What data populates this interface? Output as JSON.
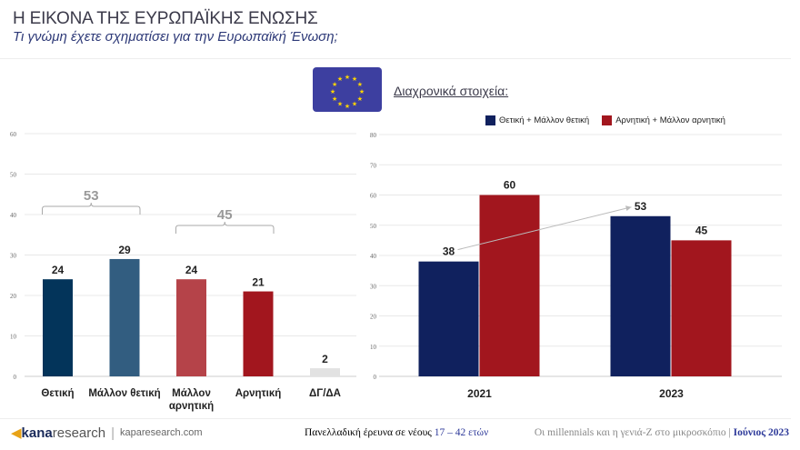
{
  "header": {
    "title": "Η ΕΙΚΟΝΑ ΤΗΣ ΕΥΡΩΠΑΪΚΗΣ ΕΝΩΣΗΣ",
    "subtitle": "Τι γνώμη έχετε σχηματίσει για την Ευρωπαϊκή Ένωση;"
  },
  "history_label": "Διαχρονικά στοιχεία:",
  "colors": {
    "navy": "#10215e",
    "red": "#a2161e"
  },
  "chart_data": [
    {
      "type": "bar",
      "categories": [
        "Θετική",
        "Μάλλον θετική",
        "Μάλλον αρνητική",
        "Αρνητική",
        "ΔΓ/ΔΑ"
      ],
      "values": [
        24,
        29,
        24,
        21,
        2
      ],
      "colors": [
        "#03345a",
        "#325d80",
        "#b54349",
        "#a2161e",
        "#e2e2e2"
      ],
      "ylim": [
        0,
        60
      ],
      "yticks": [
        0,
        10,
        20,
        30,
        40,
        50,
        60
      ],
      "grid": true,
      "annotations": [
        {
          "label": "53",
          "span": [
            "Θετική",
            "Μάλλον θετική"
          ]
        },
        {
          "label": "45",
          "span": [
            "Μάλλον αρνητική",
            "Αρνητική"
          ]
        }
      ]
    },
    {
      "type": "bar",
      "categories": [
        "2021",
        "2023"
      ],
      "ylim": [
        0,
        80
      ],
      "yticks": [
        0,
        10,
        20,
        30,
        40,
        50,
        60,
        70,
        80
      ],
      "grid": true,
      "legend": "top",
      "series": [
        {
          "name": "Θετική + Μάλλον θετική",
          "values": [
            38,
            53
          ],
          "color": "#10215e"
        },
        {
          "name": "Αρνητική + Μάλλον αρνητική",
          "values": [
            60,
            45
          ],
          "color": "#a2161e"
        }
      ],
      "trend_arrow": {
        "from": "2021",
        "to": "2023",
        "series": "Θετική + Μάλλον θετική"
      }
    }
  ],
  "footer": {
    "brand_bold": "kana",
    "brand_light": "research",
    "site": "kaparesearch.com",
    "survey": "Πανελλαδική έρευνα σε νέους ",
    "ages": "17 – 42 ετών",
    "project": "Οι millennials και η γενιά-Ζ στο μικροσκόπιο | ",
    "date": "Ιούνιος 2023"
  }
}
